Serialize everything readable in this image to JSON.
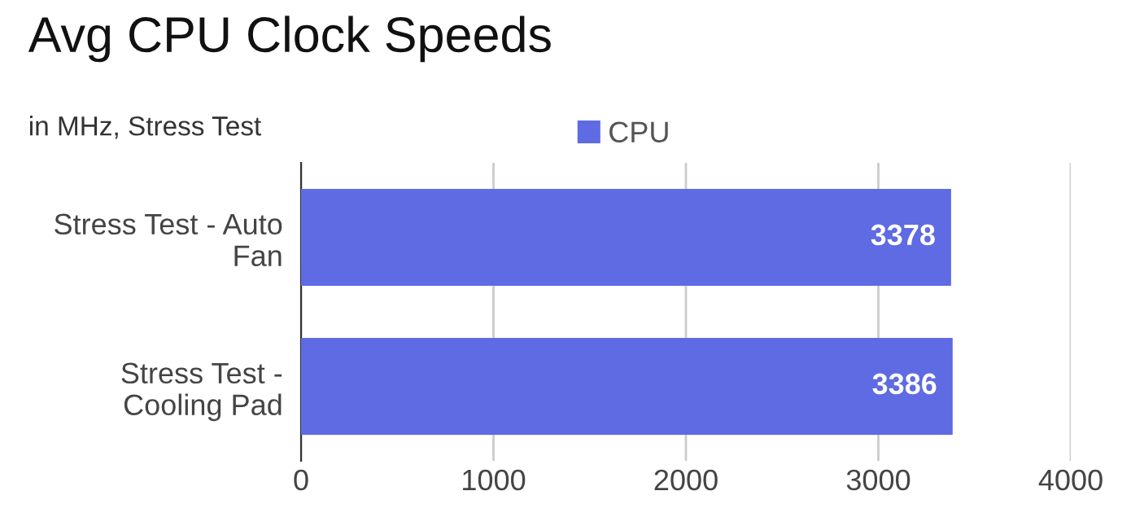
{
  "chart_data": {
    "type": "bar",
    "orientation": "horizontal",
    "title": "Avg CPU Clock Speeds",
    "subtitle": "in MHz, Stress Test",
    "categories": [
      "Stress Test - Auto\nFan",
      "Stress Test -\nCooling Pad"
    ],
    "series": [
      {
        "name": "CPU",
        "color": "#5e6be3",
        "values": [
          3378,
          3386
        ]
      }
    ],
    "xlim": [
      0,
      4000
    ],
    "xticks": [
      0,
      1000,
      2000,
      3000,
      4000
    ],
    "grid": "x",
    "legend": "top",
    "data_labels": true
  }
}
